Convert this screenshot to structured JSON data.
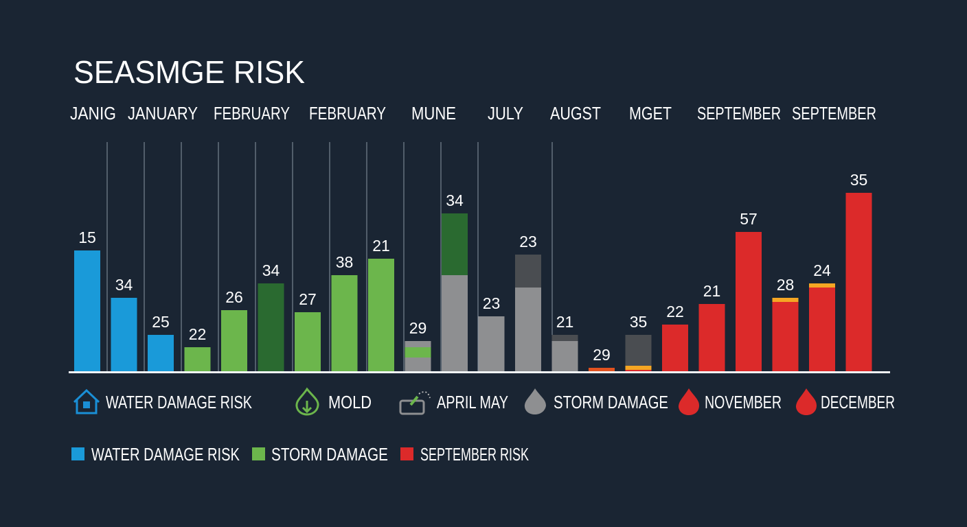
{
  "chart_data": {
    "type": "bar",
    "title": "SEASMGE RISK",
    "month_labels": [
      "JANIG",
      "JANUARY",
      "FEBRUARY",
      "FEBRUARY",
      "MUNE",
      "JULY",
      "AUGST",
      "MGET",
      "SEPTEMBER",
      "SEPTEMBER"
    ],
    "ylim": [
      0,
      100
    ],
    "grid": "vertical",
    "colors": {
      "blue": "#1a9ad9",
      "green": "#6cb64c",
      "darkgreen": "#2a6a30",
      "grey": "#8e8f91",
      "darkgrey": "#4a4d51",
      "red": "#dc2a2a",
      "orange": "#e2521f",
      "yellow": "#f5a623"
    },
    "bars": [
      {
        "label": "15",
        "segments": [
          [
            "blue",
            59
          ]
        ]
      },
      {
        "label": "34",
        "segments": [
          [
            "blue",
            36
          ]
        ]
      },
      {
        "label": "25",
        "segments": [
          [
            "blue",
            18
          ]
        ]
      },
      {
        "label": "22",
        "segments": [
          [
            "green",
            12
          ]
        ]
      },
      {
        "label": "26",
        "segments": [
          [
            "green",
            30
          ]
        ]
      },
      {
        "label": "34",
        "segments": [
          [
            "darkgreen",
            43
          ]
        ]
      },
      {
        "label": "27",
        "segments": [
          [
            "green",
            29
          ]
        ]
      },
      {
        "label": "38",
        "segments": [
          [
            "green",
            47
          ]
        ]
      },
      {
        "label": "21",
        "segments": [
          [
            "green",
            55
          ]
        ]
      },
      {
        "label": "29",
        "segments": [
          [
            "grey",
            7
          ],
          [
            "green",
            5
          ],
          [
            "grey",
            3
          ]
        ]
      },
      {
        "label": "34",
        "segments": [
          [
            "grey",
            47
          ],
          [
            "darkgreen",
            30
          ]
        ]
      },
      {
        "label": "23",
        "segments": [
          [
            "grey",
            27
          ]
        ]
      },
      {
        "label": "23",
        "segments": [
          [
            "grey",
            41
          ],
          [
            "darkgrey",
            16
          ]
        ]
      },
      {
        "label": "21",
        "segments": [
          [
            "grey",
            15
          ],
          [
            "darkgrey",
            3
          ]
        ]
      },
      {
        "label": "29",
        "segments": [
          [
            "orange",
            2
          ]
        ]
      },
      {
        "label": "35",
        "segments": [
          [
            "red",
            1
          ],
          [
            "yellow",
            2
          ],
          [
            "darkgrey",
            15
          ]
        ]
      },
      {
        "label": "22",
        "segments": [
          [
            "red",
            23
          ]
        ]
      },
      {
        "label": "21",
        "segments": [
          [
            "red",
            33
          ]
        ]
      },
      {
        "label": "57",
        "segments": [
          [
            "red",
            68
          ]
        ]
      },
      {
        "label": "28",
        "segments": [
          [
            "red",
            34
          ],
          [
            "yellow",
            2
          ]
        ]
      },
      {
        "label": "24",
        "segments": [
          [
            "red",
            41
          ],
          [
            "yellow",
            2
          ]
        ]
      },
      {
        "label": "35",
        "segments": [
          [
            "red",
            87
          ]
        ]
      }
    ],
    "icon_legend": [
      {
        "icon": "house-icon",
        "color": "#1a8fd6",
        "label": "WATER DAMAGE RISK"
      },
      {
        "icon": "flame-icon",
        "color": "#6cb64c",
        "label": "MOLD"
      },
      {
        "icon": "card-pen-icon",
        "color": "#8e8f91",
        "label": "APRIL MAY"
      },
      {
        "icon": "flame-icon",
        "color": "#8e8f91",
        "label": "STORM DAMAGE"
      },
      {
        "icon": "flame-icon",
        "color": "#dc2a2a",
        "label": "NOVEMBER"
      },
      {
        "icon": "flame-icon",
        "color": "#dc2a2a",
        "label": "DECEMBER"
      }
    ],
    "legend": [
      {
        "color": "#1a9ad9",
        "label": "WATER DAMAGE RISK"
      },
      {
        "color": "#6cb64c",
        "label": "STORM DAMAGE"
      },
      {
        "color": "#dc2a2a",
        "label": "SEPTEMBER RISK"
      }
    ]
  }
}
